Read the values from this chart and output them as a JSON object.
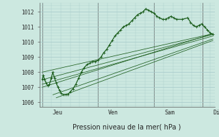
{
  "background_color": "#cce8e0",
  "grid_color": "#aacccc",
  "line_color": "#1a5c1a",
  "xlabel": "Pression niveau de la mer( hPa )",
  "ylim": [
    1005.7,
    1012.6
  ],
  "xlim": [
    -0.05,
    3.08
  ],
  "x_tick_labels": [
    "Jeu",
    "Ven",
    "Sam",
    "Dim"
  ],
  "x_tick_positions": [
    0.18,
    1.18,
    2.18,
    3.05
  ],
  "y_ticks": [
    1006,
    1007,
    1008,
    1009,
    1010,
    1011,
    1012
  ],
  "wavy_x": [
    0.0,
    0.02,
    0.04,
    0.07,
    0.1,
    0.13,
    0.16,
    0.19,
    0.22,
    0.25,
    0.28,
    0.31,
    0.34,
    0.38,
    0.42,
    0.46,
    0.5,
    0.55,
    0.6,
    0.65,
    0.7,
    0.75,
    0.8,
    0.85,
    0.9,
    0.95,
    1.0,
    1.05,
    1.1,
    1.15,
    1.2,
    1.25,
    1.3,
    1.35,
    1.4,
    1.45,
    1.5,
    1.55,
    1.6,
    1.65,
    1.7,
    1.75,
    1.8,
    1.85,
    1.9,
    1.95,
    2.0,
    2.05,
    2.1,
    2.15,
    2.2,
    2.25,
    2.3,
    2.35,
    2.4,
    2.5,
    2.6,
    2.65,
    2.7,
    2.75,
    2.8,
    2.85,
    2.9,
    2.95,
    3.0,
    3.05
  ],
  "wavy_y": [
    1007.5,
    1007.8,
    1007.5,
    1007.3,
    1007.1,
    1007.2,
    1007.6,
    1008.0,
    1007.6,
    1007.3,
    1007.0,
    1006.8,
    1006.6,
    1006.5,
    1006.5,
    1006.5,
    1006.7,
    1006.9,
    1007.2,
    1007.6,
    1008.0,
    1008.3,
    1008.5,
    1008.6,
    1008.7,
    1008.7,
    1008.8,
    1009.0,
    1009.3,
    1009.5,
    1009.8,
    1010.1,
    1010.4,
    1010.6,
    1010.8,
    1011.0,
    1011.1,
    1011.2,
    1011.4,
    1011.6,
    1011.8,
    1011.9,
    1012.0,
    1012.2,
    1012.1,
    1012.0,
    1011.9,
    1011.7,
    1011.6,
    1011.5,
    1011.5,
    1011.6,
    1011.7,
    1011.6,
    1011.5,
    1011.5,
    1011.6,
    1011.3,
    1011.1,
    1011.0,
    1011.1,
    1011.2,
    1011.0,
    1010.8,
    1010.6,
    1010.5
  ],
  "straight_lines": [
    {
      "x": [
        0.0,
        3.05
      ],
      "y": [
        1007.5,
        1010.5
      ]
    },
    {
      "x": [
        0.0,
        3.05
      ],
      "y": [
        1008.0,
        1010.55
      ]
    },
    {
      "x": [
        0.0,
        3.05
      ],
      "y": [
        1007.0,
        1010.55
      ]
    },
    {
      "x": [
        0.19,
        3.05
      ],
      "y": [
        1006.5,
        1010.2
      ]
    },
    {
      "x": [
        0.25,
        3.05
      ],
      "y": [
        1006.3,
        1010.1
      ]
    },
    {
      "x": [
        0.0,
        3.05
      ],
      "y": [
        1007.2,
        1010.4
      ]
    }
  ]
}
